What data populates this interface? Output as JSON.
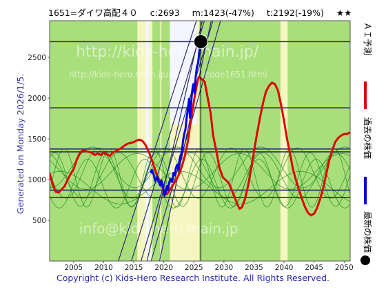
{
  "title": {
    "code_name": "1651=ダイワ高配４０",
    "current": "c:2693",
    "min": "m:1423(-47%)",
    "target": "t:2192(-19%)",
    "stars": "★★"
  },
  "generated": "Generated on Monday 2026/1/5.",
  "copyright": "Copyright (c) Kids-Hero Research Institute. All Rights Reserved.",
  "legend": {
    "ai_label": "ＡＩ予測",
    "past_label": "過去の株価",
    "latest_label": "最新の株価"
  },
  "watermark": {
    "line1": "http://kids-hero.main.jp/",
    "line2": "http://kids-hero.main.jp/analysis/code1651.html",
    "line3": "info@kids-hero.main.jp"
  },
  "colors": {
    "band_green": "#a9df7a",
    "band_yellow": "#f6f6c0",
    "band_white": "#f4f6ff",
    "ai_red": "#e00000",
    "past_blue": "#0000dd",
    "trend_navy": "#2a2a70",
    "cycle_green": "#1e8c1e"
  },
  "chart_data": {
    "type": "line",
    "xlim": [
      2001,
      2051
    ],
    "ylim": [
      0,
      2950
    ],
    "x_ticks": [
      "2005",
      "2010",
      "2015",
      "2020",
      "2025",
      "2030",
      "2035",
      "2040",
      "2045",
      "2050"
    ],
    "y_ticks": [
      "500",
      "1000",
      "1500",
      "2000",
      "2500"
    ],
    "latest_point": {
      "x": 2026.15,
      "y": 2693
    },
    "support_levels": [
      2693,
      1880,
      1375,
      1340,
      870,
      780
    ],
    "ai_prediction": {
      "name": "ＡＩ予測",
      "points": [
        [
          2001.0,
          1080
        ],
        [
          2001.5,
          940
        ],
        [
          2002.0,
          850
        ],
        [
          2002.5,
          840
        ],
        [
          2003.0,
          880
        ],
        [
          2003.5,
          920
        ],
        [
          2004.0,
          1000
        ],
        [
          2004.5,
          1070
        ],
        [
          2005.0,
          1130
        ],
        [
          2005.5,
          1240
        ],
        [
          2006.0,
          1320
        ],
        [
          2006.5,
          1360
        ],
        [
          2007.0,
          1350
        ],
        [
          2007.5,
          1340
        ],
        [
          2008.0,
          1330
        ],
        [
          2008.5,
          1300
        ],
        [
          2009.0,
          1320
        ],
        [
          2009.5,
          1300
        ],
        [
          2010.0,
          1330
        ],
        [
          2010.5,
          1310
        ],
        [
          2011.0,
          1290
        ],
        [
          2011.5,
          1330
        ],
        [
          2012.0,
          1350
        ],
        [
          2012.5,
          1370
        ],
        [
          2013.0,
          1390
        ],
        [
          2013.5,
          1420
        ],
        [
          2014.0,
          1440
        ],
        [
          2014.5,
          1450
        ],
        [
          2015.0,
          1460
        ],
        [
          2015.5,
          1480
        ],
        [
          2016.0,
          1490
        ],
        [
          2016.5,
          1470
        ],
        [
          2017.0,
          1420
        ],
        [
          2017.5,
          1340
        ],
        [
          2018.0,
          1240
        ],
        [
          2018.5,
          1130
        ],
        [
          2019.0,
          1030
        ],
        [
          2019.5,
          950
        ],
        [
          2020.0,
          860
        ],
        [
          2020.5,
          820
        ],
        [
          2021.0,
          870
        ],
        [
          2021.5,
          930
        ],
        [
          2022.0,
          990
        ],
        [
          2022.5,
          1060
        ],
        [
          2023.0,
          1160
        ],
        [
          2023.5,
          1290
        ],
        [
          2024.0,
          1470
        ],
        [
          2024.5,
          1720
        ],
        [
          2025.0,
          1960
        ],
        [
          2025.5,
          2170
        ],
        [
          2025.8,
          2260
        ],
        [
          2026.2,
          2240
        ],
        [
          2026.8,
          2200
        ],
        [
          2027.2,
          2040
        ],
        [
          2027.8,
          1810
        ],
        [
          2028.2,
          1540
        ],
        [
          2028.8,
          1330
        ],
        [
          2029.2,
          1160
        ],
        [
          2029.8,
          1030
        ],
        [
          2030.2,
          1000
        ],
        [
          2030.8,
          960
        ],
        [
          2031.2,
          890
        ],
        [
          2031.8,
          780
        ],
        [
          2032.2,
          700
        ],
        [
          2032.6,
          640
        ],
        [
          2033.0,
          660
        ],
        [
          2033.5,
          760
        ],
        [
          2034.0,
          920
        ],
        [
          2034.5,
          1120
        ],
        [
          2035.0,
          1340
        ],
        [
          2035.5,
          1560
        ],
        [
          2036.0,
          1760
        ],
        [
          2036.5,
          1940
        ],
        [
          2037.0,
          2080
        ],
        [
          2037.5,
          2150
        ],
        [
          2038.0,
          2190
        ],
        [
          2038.5,
          2170
        ],
        [
          2039.0,
          2090
        ],
        [
          2039.5,
          1920
        ],
        [
          2040.0,
          1720
        ],
        [
          2040.5,
          1500
        ],
        [
          2041.0,
          1320
        ],
        [
          2041.5,
          1120
        ],
        [
          2042.0,
          990
        ],
        [
          2042.5,
          870
        ],
        [
          2043.0,
          760
        ],
        [
          2043.5,
          660
        ],
        [
          2044.0,
          590
        ],
        [
          2044.5,
          560
        ],
        [
          2045.0,
          580
        ],
        [
          2045.5,
          650
        ],
        [
          2046.0,
          760
        ],
        [
          2046.5,
          890
        ],
        [
          2047.0,
          1060
        ],
        [
          2047.5,
          1230
        ],
        [
          2048.0,
          1350
        ],
        [
          2048.5,
          1460
        ],
        [
          2049.0,
          1510
        ],
        [
          2049.5,
          1540
        ],
        [
          2050.0,
          1560
        ],
        [
          2050.5,
          1560
        ],
        [
          2051.0,
          1580
        ]
      ]
    },
    "past_price": {
      "name": "過去の株価",
      "points": [
        [
          2017.8,
          1080
        ],
        [
          2018.0,
          1120
        ],
        [
          2018.3,
          1060
        ],
        [
          2018.6,
          980
        ],
        [
          2018.9,
          1040
        ],
        [
          2019.1,
          980
        ],
        [
          2019.4,
          930
        ],
        [
          2019.6,
          990
        ],
        [
          2019.9,
          900
        ],
        [
          2020.1,
          800
        ],
        [
          2020.3,
          840
        ],
        [
          2020.5,
          920
        ],
        [
          2020.7,
          870
        ],
        [
          2020.9,
          960
        ],
        [
          2021.1,
          1010
        ],
        [
          2021.4,
          970
        ],
        [
          2021.6,
          1080
        ],
        [
          2021.8,
          1050
        ],
        [
          2022.0,
          1140
        ],
        [
          2022.2,
          1180
        ],
        [
          2022.4,
          1120
        ],
        [
          2022.6,
          1240
        ],
        [
          2022.8,
          1300
        ],
        [
          2023.0,
          1330
        ],
        [
          2023.2,
          1480
        ],
        [
          2023.4,
          1560
        ],
        [
          2023.6,
          1620
        ],
        [
          2023.8,
          1760
        ],
        [
          2024.0,
          1860
        ],
        [
          2024.2,
          1990
        ],
        [
          2024.35,
          1760
        ],
        [
          2024.5,
          1900
        ],
        [
          2024.7,
          2080
        ],
        [
          2024.9,
          2170
        ],
        [
          2025.1,
          2060
        ],
        [
          2025.3,
          2260
        ],
        [
          2025.5,
          2380
        ],
        [
          2025.7,
          2430
        ],
        [
          2025.9,
          2560
        ],
        [
          2026.1,
          2693
        ]
      ]
    }
  }
}
